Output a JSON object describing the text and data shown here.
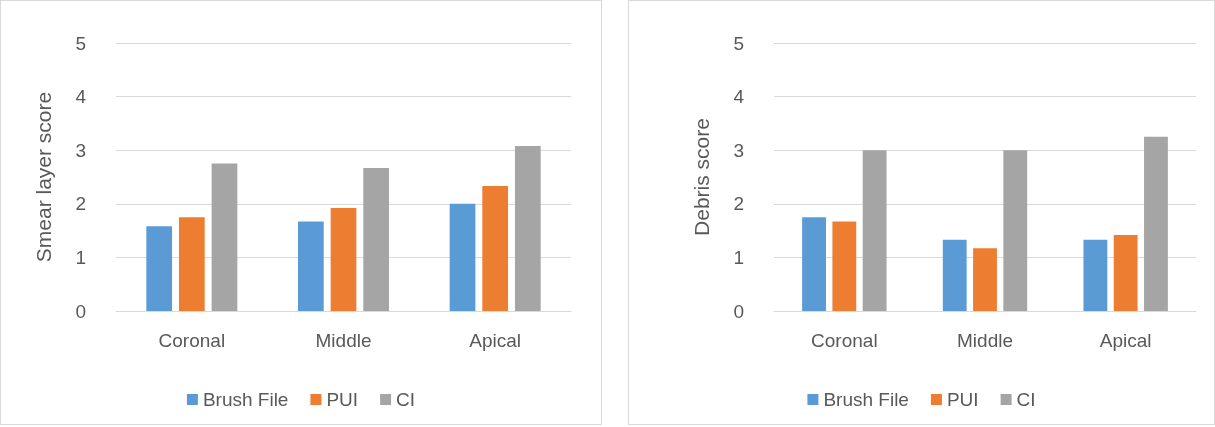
{
  "chart_data": [
    {
      "type": "bar",
      "ylabel": "Smear layer score",
      "categories": [
        "Coronal",
        "Middle",
        "Apical"
      ],
      "series": [
        {
          "name": "Brush File",
          "color": "#5b9bd5",
          "values": [
            1.58,
            1.67,
            2.0
          ]
        },
        {
          "name": "PUI",
          "color": "#ed7d31",
          "values": [
            1.75,
            1.92,
            2.33
          ]
        },
        {
          "name": "CI",
          "color": "#a5a5a5",
          "values": [
            2.75,
            2.67,
            3.08
          ]
        }
      ],
      "ylim": [
        0,
        5
      ],
      "yticks": [
        0,
        1,
        2,
        3,
        4,
        5
      ],
      "grid": "y",
      "legend": "bottom"
    },
    {
      "type": "bar",
      "ylabel": "Debris score",
      "categories": [
        "Coronal",
        "Middle",
        "Apical"
      ],
      "series": [
        {
          "name": "Brush File",
          "color": "#5b9bd5",
          "values": [
            1.75,
            1.33,
            1.33
          ]
        },
        {
          "name": "PUI",
          "color": "#ed7d31",
          "values": [
            1.67,
            1.17,
            1.42
          ]
        },
        {
          "name": "CI",
          "color": "#a5a5a5",
          "values": [
            3.0,
            3.0,
            3.25
          ]
        }
      ],
      "ylim": [
        0,
        5
      ],
      "yticks": [
        0,
        1,
        2,
        3,
        4,
        5
      ],
      "grid": "y",
      "legend": "bottom"
    }
  ]
}
